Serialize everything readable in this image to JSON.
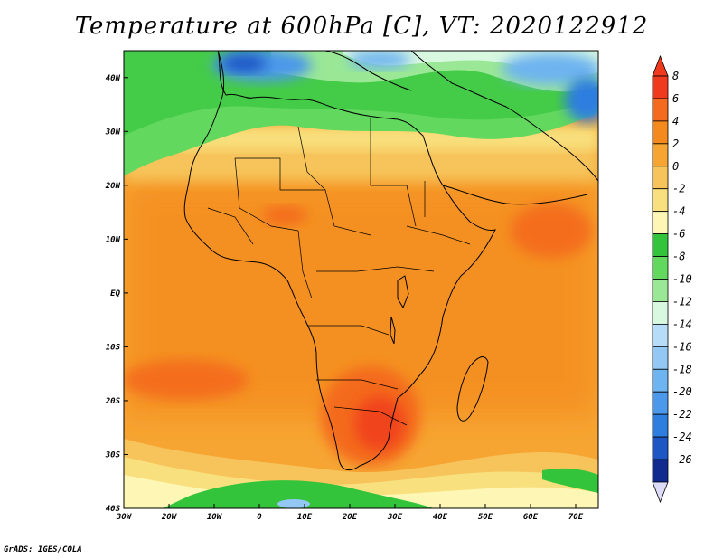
{
  "title": "Temperature at 600hPa [C], VT: 2020122912",
  "credit": "GrADS: IGES/COLA",
  "map": {
    "region": "Africa",
    "lon_range": [
      -30,
      75
    ],
    "lat_range": [
      -40,
      45
    ],
    "lon_ticks": [
      "30W",
      "20W",
      "10W",
      "0",
      "10E",
      "20E",
      "30E",
      "40E",
      "50E",
      "60E",
      "70E"
    ],
    "lat_ticks": [
      "40N",
      "30N",
      "20N",
      "10N",
      "EQ",
      "10S",
      "20S",
      "30S",
      "40S"
    ]
  },
  "colorbar": {
    "labels": [
      "8",
      "6",
      "4",
      "2",
      "0",
      "-2",
      "-4",
      "-6",
      "-8",
      "-10",
      "-12",
      "-14",
      "-16",
      "-18",
      "-20",
      "-22",
      "-24",
      "-26"
    ],
    "colors": [
      "#f03a1e",
      "#f46a1e",
      "#f48a1e",
      "#f6a533",
      "#f6c45a",
      "#f8e07e",
      "#fdf6b4",
      "#34c43c",
      "#62d85e",
      "#9ae896",
      "#d8f8e0",
      "#b6dcf8",
      "#94c8f4",
      "#6eb4f0",
      "#4c98ea",
      "#2e7ee0",
      "#1e56c4",
      "#102a90"
    ]
  }
}
